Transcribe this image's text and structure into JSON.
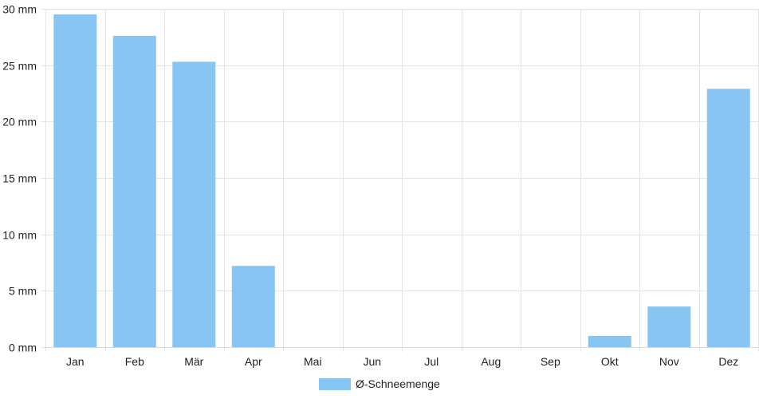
{
  "chart_data": {
    "type": "bar",
    "categories": [
      "Jan",
      "Feb",
      "Mär",
      "Apr",
      "Mai",
      "Jun",
      "Jul",
      "Aug",
      "Sep",
      "Okt",
      "Nov",
      "Dez"
    ],
    "series": [
      {
        "name": "Ø-Schneemenge",
        "color": "#88c5f2",
        "values": [
          29.5,
          27.6,
          25.3,
          7.2,
          0,
          0,
          0,
          0,
          0,
          1.0,
          3.6,
          22.9
        ]
      }
    ],
    "y_tick_labels": [
      "0 mm",
      "5 mm",
      "10 mm",
      "15 mm",
      "20 mm",
      "25 mm",
      "30 mm"
    ],
    "ylim": [
      0,
      30
    ],
    "y_tick_step": 5,
    "grid": true,
    "legend_position": "bottom-center"
  }
}
